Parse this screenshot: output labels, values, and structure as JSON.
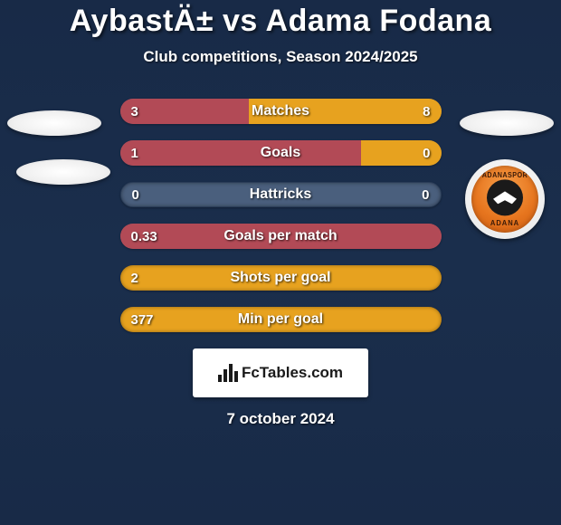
{
  "title": "AybastÄ± vs Adama Fodana",
  "subtitle": "Club competitions, Season 2024/2025",
  "date": "7 october 2024",
  "branding": {
    "text": "FcTables.com"
  },
  "colors": {
    "left_bar": "#b24a56",
    "right_bar": "#e7a21f",
    "neutral_bar": "#4a5f7d",
    "bar_border": "#2a3d58"
  },
  "team_right_badge": {
    "top_text": "ADANASPOR",
    "bottom_text": "ADANA"
  },
  "stats": [
    {
      "label": "Matches",
      "left_val": "3",
      "right_val": "8",
      "left_pct": 40,
      "right_pct": 60,
      "neutral": false
    },
    {
      "label": "Goals",
      "left_val": "1",
      "right_val": "0",
      "left_pct": 75,
      "right_pct": 25,
      "neutral": false
    },
    {
      "label": "Hattricks",
      "left_val": "0",
      "right_val": "0",
      "left_pct": 0,
      "right_pct": 0,
      "neutral": true
    },
    {
      "label": "Goals per match",
      "left_val": "0.33",
      "right_val": "",
      "left_pct": 100,
      "right_pct": 0,
      "neutral": false
    },
    {
      "label": "Shots per goal",
      "left_val": "2",
      "right_val": "",
      "left_pct": 0,
      "right_pct": 100,
      "neutral": false,
      "full_right": true
    },
    {
      "label": "Min per goal",
      "left_val": "377",
      "right_val": "",
      "left_pct": 0,
      "right_pct": 100,
      "neutral": false,
      "full_right": true
    }
  ]
}
